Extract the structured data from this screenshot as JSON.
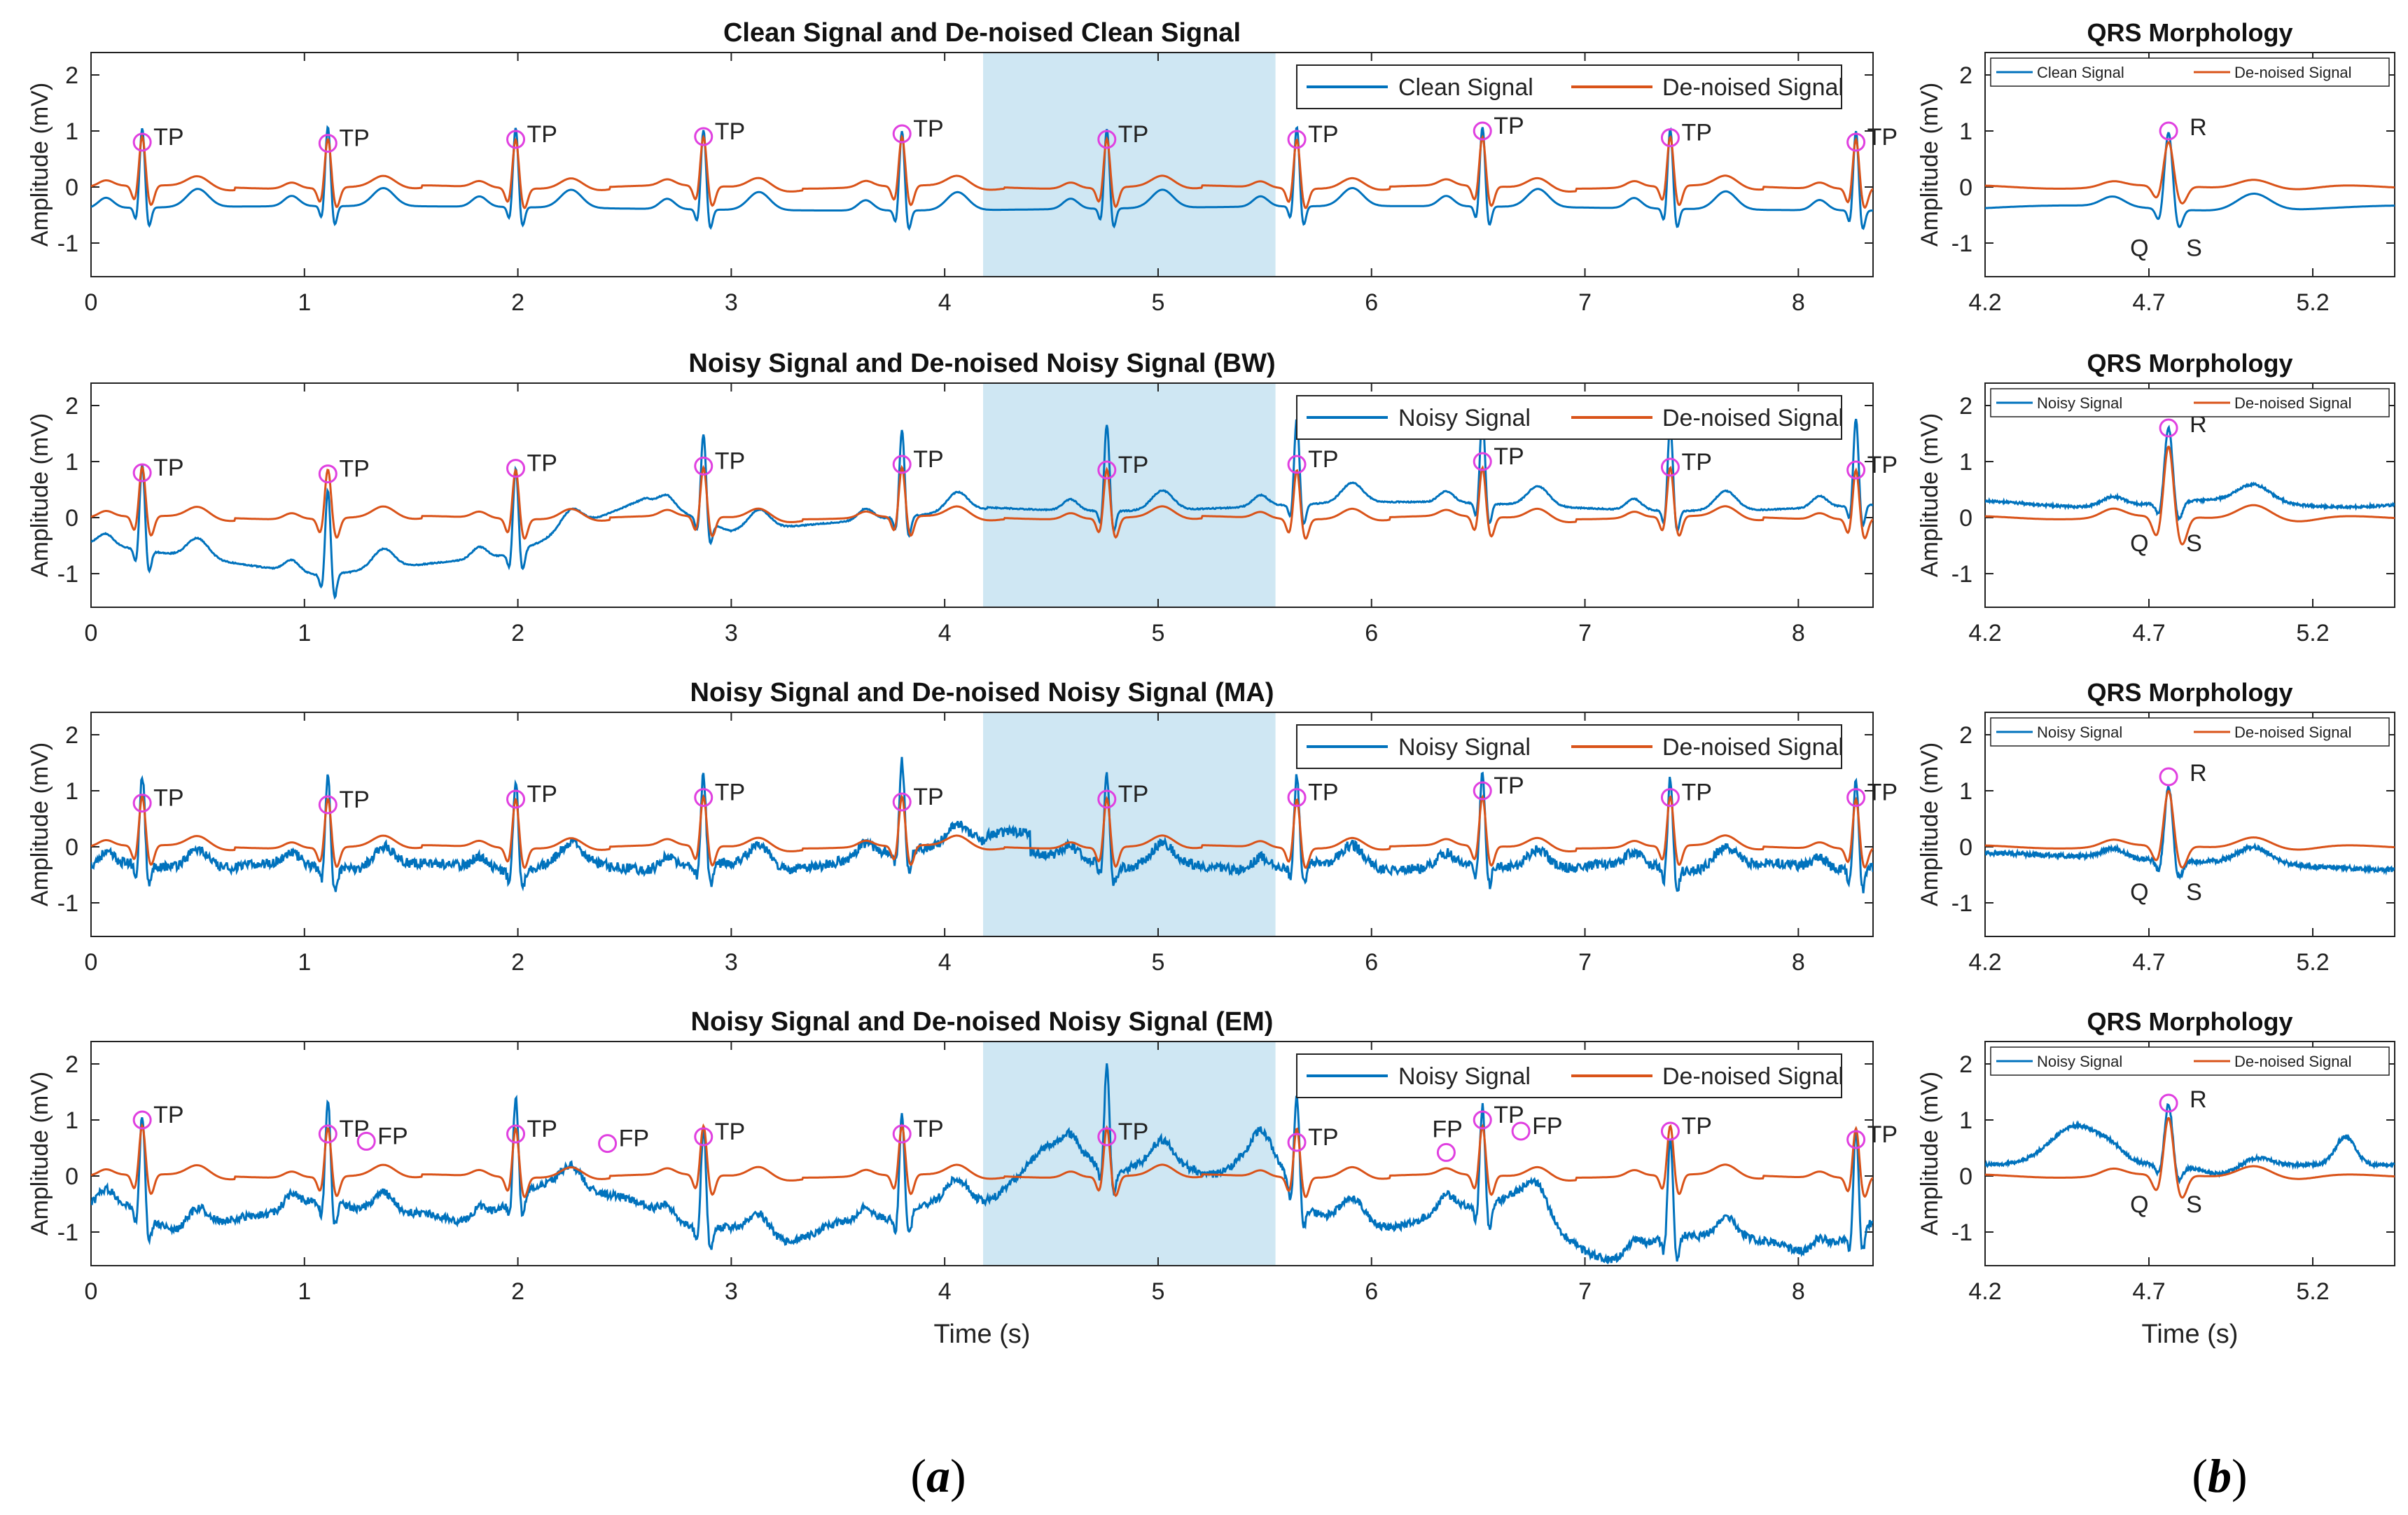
{
  "colors": {
    "signal": "#0072BD",
    "denoised": "#D95319",
    "marker": "#E040E0",
    "highlight": "#CFE7F3"
  },
  "captions": {
    "a_letter": "a",
    "b_letter": "b"
  },
  "common": {
    "ylabel": "Amplitude (mV)",
    "xlabel": "Time (s)",
    "qrs_title": "QRS Morphology",
    "x_ticks_a": [
      "0",
      "1",
      "2",
      "3",
      "4",
      "5",
      "6",
      "7",
      "8"
    ],
    "x_ticks_b": [
      "4.2",
      "4.7",
      "5.2"
    ],
    "highlight_window_s": [
      4.18,
      5.55
    ],
    "legend_denoised": "De-noised Signal"
  },
  "chart_data": [
    {
      "type": "line",
      "title": "Clean Signal and De-noised Clean Signal",
      "legend": [
        "Clean Signal",
        "De-noised Signal"
      ],
      "xlim": [
        0,
        8.35
      ],
      "ylim": [
        -1.6,
        2.4
      ],
      "y_ticks": [
        "2",
        "1",
        "0",
        "-1"
      ],
      "baseline": -0.38,
      "r_peaks_s": [
        0.24,
        1.11,
        1.99,
        2.87,
        3.8,
        4.76,
        5.65,
        6.52,
        7.4,
        8.27
      ],
      "detections": [
        {
          "t": 0.24,
          "y": 0.8,
          "label": "TP"
        },
        {
          "t": 1.11,
          "y": 0.78,
          "label": "TP"
        },
        {
          "t": 1.99,
          "y": 0.85,
          "label": "TP"
        },
        {
          "t": 2.87,
          "y": 0.9,
          "label": "TP"
        },
        {
          "t": 3.8,
          "y": 0.95,
          "label": "TP"
        },
        {
          "t": 4.76,
          "y": 0.85,
          "label": "TP"
        },
        {
          "t": 5.65,
          "y": 0.85,
          "label": "TP"
        },
        {
          "t": 6.52,
          "y": 1.0,
          "label": "TP"
        },
        {
          "t": 7.4,
          "y": 0.88,
          "label": "TP"
        },
        {
          "t": 8.27,
          "y": 0.8,
          "label": "TP"
        }
      ]
    },
    {
      "type": "line",
      "title": "Noisy Signal and De-noised Noisy Signal (BW)",
      "legend": [
        "Noisy Signal",
        "De-noised Signal"
      ],
      "xlim": [
        0,
        8.35
      ],
      "ylim": [
        -1.6,
        2.4
      ],
      "y_ticks": [
        "2",
        "1",
        "0",
        "-1"
      ],
      "baseline": 0.0,
      "r_peaks_s": [
        0.24,
        1.11,
        1.99,
        2.87,
        3.8,
        4.76,
        5.65,
        6.52,
        7.4,
        8.27
      ],
      "detections": [
        {
          "t": 0.24,
          "y": 0.8,
          "label": "TP"
        },
        {
          "t": 1.11,
          "y": 0.78,
          "label": "TP"
        },
        {
          "t": 1.99,
          "y": 0.88,
          "label": "TP"
        },
        {
          "t": 2.87,
          "y": 0.92,
          "label": "TP"
        },
        {
          "t": 3.8,
          "y": 0.95,
          "label": "TP"
        },
        {
          "t": 4.76,
          "y": 0.85,
          "label": "TP"
        },
        {
          "t": 5.65,
          "y": 0.95,
          "label": "TP"
        },
        {
          "t": 6.52,
          "y": 1.0,
          "label": "TP"
        },
        {
          "t": 7.4,
          "y": 0.9,
          "label": "TP"
        },
        {
          "t": 8.27,
          "y": 0.85,
          "label": "TP"
        }
      ]
    },
    {
      "type": "line",
      "title": "Noisy Signal and De-noised Noisy Signal (MA)",
      "legend": [
        "Noisy Signal",
        "De-noised Signal"
      ],
      "xlim": [
        0,
        8.35
      ],
      "ylim": [
        -1.6,
        2.4
      ],
      "y_ticks": [
        "2",
        "1",
        "0",
        "-1"
      ],
      "baseline": -0.35,
      "r_peaks_s": [
        0.24,
        1.11,
        1.99,
        2.87,
        3.8,
        4.76,
        5.65,
        6.52,
        7.4,
        8.27
      ],
      "detections": [
        {
          "t": 0.24,
          "y": 0.78,
          "label": "TP"
        },
        {
          "t": 1.11,
          "y": 0.75,
          "label": "TP"
        },
        {
          "t": 1.99,
          "y": 0.85,
          "label": "TP"
        },
        {
          "t": 2.87,
          "y": 0.88,
          "label": "TP"
        },
        {
          "t": 3.8,
          "y": 0.8,
          "label": "TP"
        },
        {
          "t": 4.76,
          "y": 0.85,
          "label": "TP"
        },
        {
          "t": 5.65,
          "y": 0.88,
          "label": "TP"
        },
        {
          "t": 6.52,
          "y": 1.0,
          "label": "TP"
        },
        {
          "t": 7.4,
          "y": 0.88,
          "label": "TP"
        },
        {
          "t": 8.27,
          "y": 0.88,
          "label": "TP"
        }
      ]
    },
    {
      "type": "line",
      "title": "Noisy Signal and De-noised Noisy Signal (EM)",
      "legend": [
        "Noisy Signal",
        "De-noised Signal"
      ],
      "xlim": [
        0,
        8.35
      ],
      "ylim": [
        -1.6,
        2.4
      ],
      "y_ticks": [
        "2",
        "1",
        "0",
        "-1"
      ],
      "baseline": -0.6,
      "r_peaks_s": [
        0.24,
        1.11,
        1.99,
        2.87,
        3.8,
        4.76,
        5.65,
        6.52,
        7.4,
        8.27
      ],
      "detections": [
        {
          "t": 0.24,
          "y": 1.0,
          "label": "TP"
        },
        {
          "t": 1.11,
          "y": 0.75,
          "label": "TP"
        },
        {
          "t": 1.29,
          "y": 0.62,
          "label": "FP"
        },
        {
          "t": 1.99,
          "y": 0.75,
          "label": "TP"
        },
        {
          "t": 2.42,
          "y": 0.58,
          "label": "FP"
        },
        {
          "t": 2.87,
          "y": 0.7,
          "label": "TP"
        },
        {
          "t": 3.8,
          "y": 0.75,
          "label": "TP"
        },
        {
          "t": 4.76,
          "y": 0.7,
          "label": "TP"
        },
        {
          "t": 5.65,
          "y": 0.6,
          "label": "TP"
        },
        {
          "t": 6.35,
          "y": 0.42,
          "label": "FP"
        },
        {
          "t": 6.52,
          "y": 1.0,
          "label": "TP"
        },
        {
          "t": 6.7,
          "y": 0.8,
          "label": "FP"
        },
        {
          "t": 7.4,
          "y": 0.8,
          "label": "TP"
        },
        {
          "t": 8.27,
          "y": 0.65,
          "label": "TP"
        }
      ]
    },
    {
      "type": "line",
      "title": "QRS Morphology",
      "legend": [
        "Clean Signal",
        "De-noised Signal"
      ],
      "xlim": [
        4.2,
        5.45
      ],
      "ylim": [
        -1.6,
        2.4
      ],
      "y_ticks": [
        "2",
        "1",
        "0",
        "-1"
      ],
      "baseline": -0.38,
      "r_peak": {
        "t": 4.76,
        "y": 1.0
      },
      "annotations": [
        "R",
        "Q",
        "S"
      ]
    },
    {
      "type": "line",
      "title": "QRS Morphology",
      "legend": [
        "Noisy Signal",
        "De-noised Signal"
      ],
      "xlim": [
        4.2,
        5.45
      ],
      "ylim": [
        -1.6,
        2.4
      ],
      "y_ticks": [
        "2",
        "1",
        "0",
        "-1"
      ],
      "baseline": 0.25,
      "r_peak": {
        "t": 4.76,
        "y": 1.6
      },
      "annotations": [
        "R",
        "Q",
        "S"
      ]
    },
    {
      "type": "line",
      "title": "QRS Morphology",
      "legend": [
        "Noisy Signal",
        "De-noised Signal"
      ],
      "xlim": [
        4.2,
        5.45
      ],
      "ylim": [
        -1.6,
        2.4
      ],
      "y_ticks": [
        "2",
        "1",
        "0",
        "-1"
      ],
      "baseline": -0.1,
      "r_peak": {
        "t": 4.76,
        "y": 1.25
      },
      "annotations": [
        "R",
        "Q",
        "S"
      ]
    },
    {
      "type": "line",
      "title": "QRS Morphology",
      "legend": [
        "Noisy Signal",
        "De-noised Signal"
      ],
      "xlim": [
        4.2,
        5.45
      ],
      "ylim": [
        -1.6,
        2.4
      ],
      "y_ticks": [
        "2",
        "1",
        "0",
        "-1"
      ],
      "baseline": 0.2,
      "r_peak": {
        "t": 4.76,
        "y": 1.3
      },
      "annotations": [
        "R",
        "Q",
        "S"
      ]
    }
  ]
}
